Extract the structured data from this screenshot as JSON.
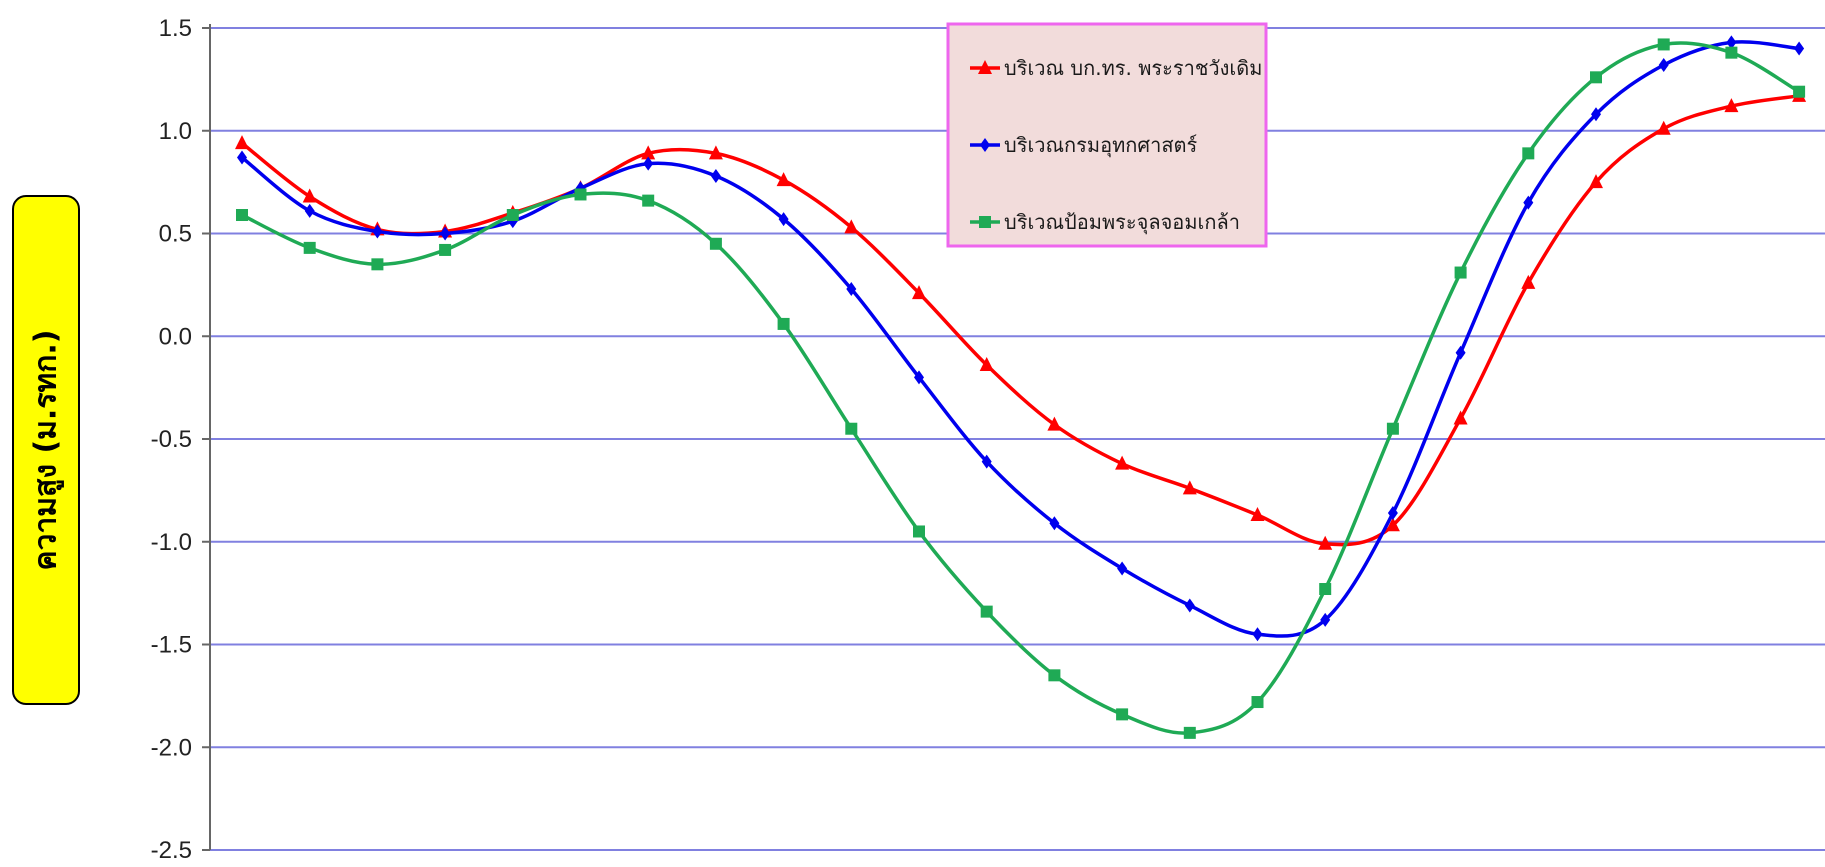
{
  "chart_data": {
    "type": "line",
    "title": "",
    "xlabel": "",
    "ylabel": "ความสูง (ม.รทก.)",
    "ylim": [
      -2.5,
      1.5
    ],
    "yticks": [
      1.5,
      1.0,
      0.5,
      0.0,
      -0.5,
      -1.0,
      -1.5,
      -2.0,
      -2.5
    ],
    "ytick_labels": [
      "1.5",
      "1.0",
      "0.5",
      "0.0",
      "-0.5",
      "-1.0",
      "-1.5",
      "-2.0",
      "-2.5"
    ],
    "grid": true,
    "legend_position": "top-center",
    "x": [
      1,
      2,
      3,
      4,
      5,
      6,
      7,
      8,
      9,
      10,
      11,
      12,
      13,
      14,
      15,
      16,
      17,
      18,
      19,
      20,
      21,
      22,
      23,
      24
    ],
    "series": [
      {
        "name": "บริเวณ บก.ทร. พระราชวังเดิม",
        "color": "#ff0000",
        "marker": "triangle",
        "values": [
          0.94,
          0.68,
          0.52,
          0.51,
          0.6,
          0.72,
          0.89,
          0.89,
          0.76,
          0.53,
          0.21,
          -0.14,
          -0.43,
          -0.62,
          -0.74,
          -0.87,
          -1.01,
          -0.92,
          -0.4,
          0.26,
          0.75,
          1.01,
          1.12,
          1.17
        ]
      },
      {
        "name": "บริเวณกรมอุทกศาสตร์",
        "color": "#0000ee",
        "marker": "diamond",
        "values": [
          0.87,
          0.61,
          0.51,
          0.5,
          0.56,
          0.72,
          0.84,
          0.78,
          0.57,
          0.23,
          -0.2,
          -0.61,
          -0.91,
          -1.13,
          -1.31,
          -1.45,
          -1.38,
          -0.86,
          -0.08,
          0.65,
          1.08,
          1.32,
          1.43,
          1.4
        ]
      },
      {
        "name": "บริเวณป้อมพระจุลจอมเกล้า",
        "color": "#1faa55",
        "marker": "square",
        "values": [
          0.59,
          0.43,
          0.35,
          0.42,
          0.59,
          0.69,
          0.66,
          0.45,
          0.06,
          -0.45,
          -0.95,
          -1.34,
          -1.65,
          -1.84,
          -1.93,
          -1.78,
          -1.23,
          -0.45,
          0.31,
          0.89,
          1.26,
          1.42,
          1.38,
          1.19
        ]
      }
    ]
  }
}
